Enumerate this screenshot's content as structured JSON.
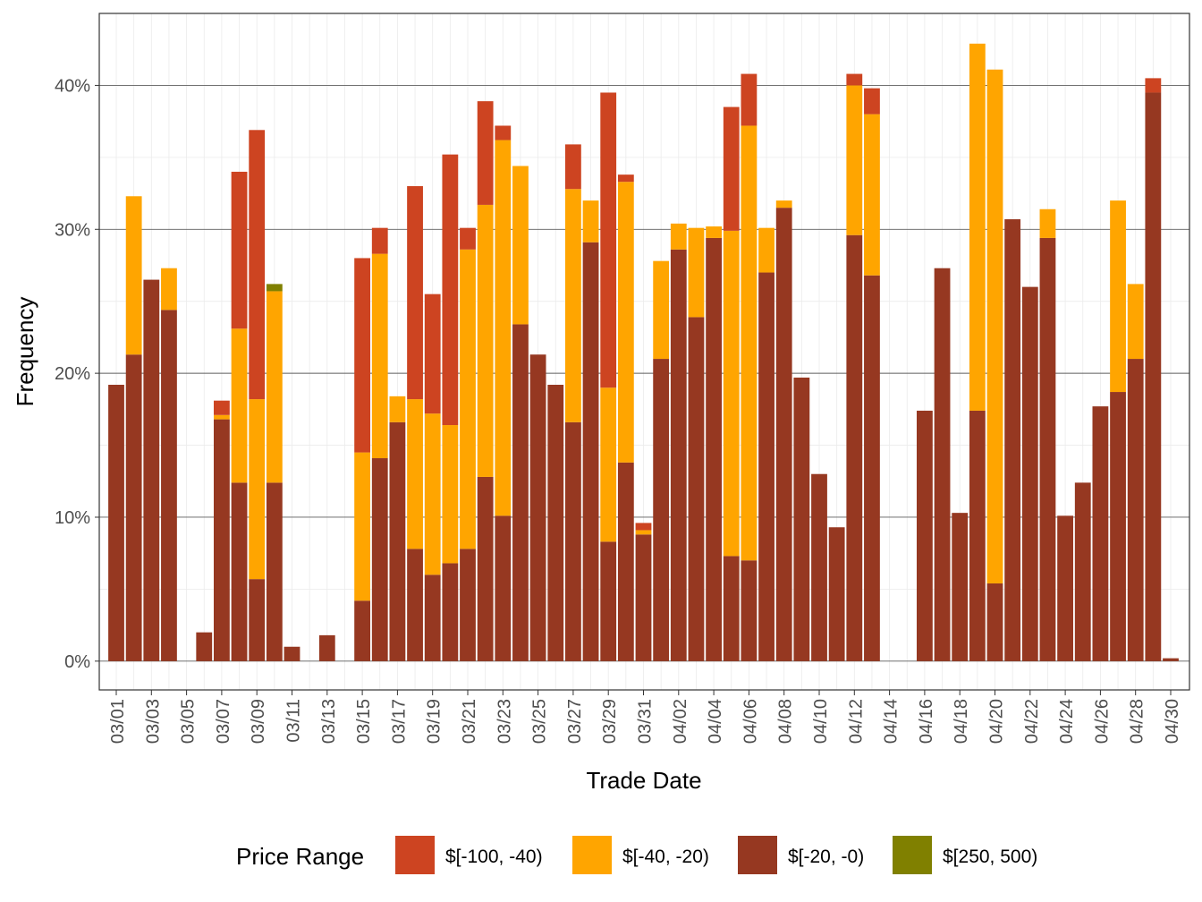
{
  "chart_data": {
    "type": "bar",
    "stacked": true,
    "xlabel": "Trade Date",
    "ylabel": "Frequency",
    "ylim": [
      -0.02,
      0.45
    ],
    "yticks": [
      0,
      0.1,
      0.2,
      0.3,
      0.4
    ],
    "ytick_labels": [
      "0%",
      "10%",
      "20%",
      "30%",
      "40%"
    ],
    "legend": {
      "title": "Price Range",
      "placement": "bottom"
    },
    "categories": [
      "03/01",
      "03/02",
      "03/03",
      "03/04",
      "03/05",
      "03/06",
      "03/07",
      "03/08",
      "03/09",
      "03/10",
      "03/11",
      "03/12",
      "03/13",
      "03/14",
      "03/15",
      "03/16",
      "03/17",
      "03/18",
      "03/19",
      "03/20",
      "03/21",
      "03/22",
      "03/23",
      "03/24",
      "03/25",
      "03/26",
      "03/27",
      "03/28",
      "03/29",
      "03/30",
      "03/31",
      "04/01",
      "04/02",
      "04/03",
      "04/04",
      "04/05",
      "04/06",
      "04/07",
      "04/08",
      "04/09",
      "04/10",
      "04/11",
      "04/12",
      "04/13",
      "04/14",
      "04/15",
      "04/16",
      "04/17",
      "04/18",
      "04/19",
      "04/20",
      "04/21",
      "04/22",
      "04/23",
      "04/24",
      "04/25",
      "04/26",
      "04/27",
      "04/28",
      "04/29",
      "04/30"
    ],
    "xtick_labels": [
      "03/01",
      "03/03",
      "03/05",
      "03/07",
      "03/09",
      "03/11",
      "03/13",
      "03/15",
      "03/17",
      "03/19",
      "03/21",
      "03/23",
      "03/25",
      "03/27",
      "03/29",
      "03/31",
      "04/02",
      "04/04",
      "04/06",
      "04/08",
      "04/10",
      "04/12",
      "04/14",
      "04/16",
      "04/18",
      "04/20",
      "04/22",
      "04/24",
      "04/26",
      "04/28",
      "04/30"
    ],
    "series": [
      {
        "name": "$[-20, -0)",
        "color": "#963821",
        "values": [
          0.192,
          0.213,
          0.265,
          0.244,
          0,
          0.02,
          0.168,
          0.124,
          0.057,
          0.124,
          0.01,
          0,
          0.018,
          0,
          0.042,
          0.141,
          0.166,
          0.078,
          0.06,
          0.068,
          0.078,
          0.128,
          0.101,
          0.234,
          0.213,
          0.192,
          0.166,
          0.291,
          0.083,
          0.138,
          0.088,
          0.21,
          0.286,
          0.239,
          0.294,
          0.073,
          0.07,
          0.27,
          0.315,
          0.197,
          0.13,
          0.093,
          0.296,
          0.268,
          0,
          0,
          0.174,
          0.273,
          0.103,
          0.174,
          0.054,
          0.307,
          0.26,
          0.294,
          0.101,
          0.124,
          0.177,
          0.187,
          0.21,
          0.395,
          0.002
        ]
      },
      {
        "name": "$[-40, -20)",
        "color": "#FFA500",
        "values": [
          0,
          0.11,
          0,
          0.029,
          0,
          0,
          0.003,
          0.107,
          0.125,
          0.133,
          0,
          0,
          0,
          0,
          0.103,
          0.142,
          0.018,
          0.104,
          0.112,
          0.096,
          0.208,
          0.189,
          0.261,
          0.11,
          0,
          0,
          0.162,
          0.029,
          0.107,
          0.195,
          0.003,
          0.068,
          0.018,
          0.062,
          0.008,
          0.226,
          0.302,
          0.031,
          0.005,
          0,
          0,
          0,
          0.104,
          0.112,
          0,
          0,
          0,
          0,
          0,
          0.255,
          0.357,
          0,
          0,
          0.02,
          0,
          0,
          0,
          0.133,
          0.052,
          0,
          0
        ]
      },
      {
        "name": "$[-100, -40)",
        "color": "#CD4421",
        "values": [
          0,
          0,
          0,
          0,
          0,
          0,
          0.01,
          0.109,
          0.187,
          0,
          0,
          0,
          0,
          0,
          0.135,
          0.018,
          0,
          0.148,
          0.083,
          0.188,
          0.015,
          0.072,
          0.01,
          0,
          0,
          0,
          0.031,
          0,
          0.205,
          0.005,
          0.005,
          0,
          0,
          0,
          0,
          0.086,
          0.036,
          0,
          0,
          0,
          0,
          0,
          0.008,
          0.018,
          0,
          0,
          0,
          0,
          0,
          0,
          0,
          0,
          0,
          0,
          0,
          0,
          0,
          0,
          0,
          0.01,
          0
        ]
      },
      {
        "name": "$[250, 500)",
        "color": "#808000",
        "values": [
          0,
          0,
          0,
          0,
          0,
          0,
          0,
          0,
          0,
          0.005,
          0,
          0,
          0,
          0,
          0,
          0,
          0,
          0,
          0,
          0,
          0,
          0,
          0,
          0,
          0,
          0,
          0,
          0,
          0,
          0,
          0,
          0,
          0,
          0,
          0,
          0,
          0,
          0,
          0,
          0,
          0,
          0,
          0,
          0,
          0,
          0,
          0,
          0,
          0,
          0,
          0,
          0,
          0,
          0,
          0,
          0,
          0,
          0,
          0,
          0,
          0
        ]
      }
    ],
    "legend_order": [
      {
        "label": "$[-100, -40)",
        "color": "#CD4421"
      },
      {
        "label": "$[-40, -20)",
        "color": "#FFA500"
      },
      {
        "label": "$[-20, -0)",
        "color": "#963821"
      },
      {
        "label": "$[250, 500)",
        "color": "#808000"
      }
    ]
  }
}
